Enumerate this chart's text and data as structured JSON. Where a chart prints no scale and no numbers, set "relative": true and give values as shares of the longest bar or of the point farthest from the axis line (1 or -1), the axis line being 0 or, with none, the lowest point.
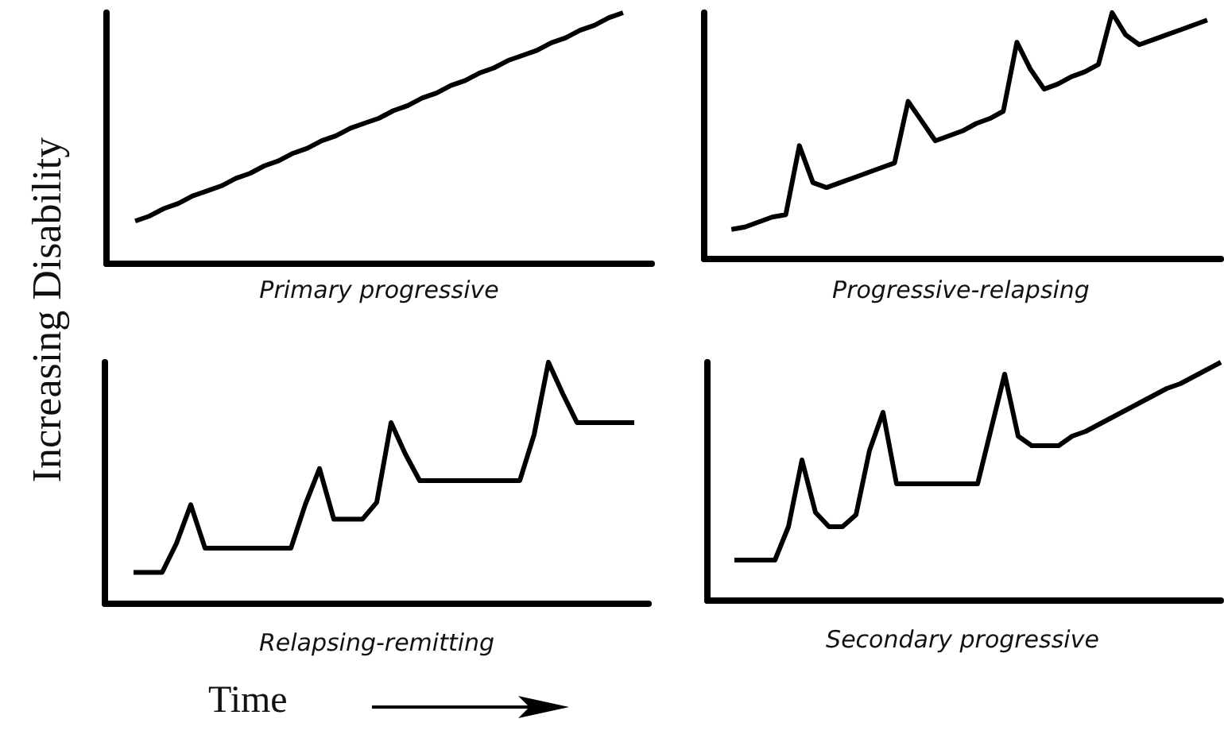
{
  "chart_data": [
    {
      "type": "line",
      "title": "Primary progressive",
      "ylabel": "Increasing Disability",
      "relative": true,
      "tick_labels": false,
      "color": "#000000",
      "categories": [
        null,
        null,
        null,
        null,
        null,
        null,
        null,
        null,
        null,
        null,
        null,
        null,
        null,
        null,
        null,
        null,
        null,
        null,
        null,
        null,
        null,
        null,
        null,
        null,
        null,
        null,
        null,
        null,
        null,
        null,
        null,
        null,
        null,
        null,
        null,
        null,
        null,
        null,
        null
      ],
      "values": [
        null,
        null,
        0.17,
        0.19,
        0.22,
        0.24,
        0.27,
        0.29,
        0.31,
        0.34,
        0.36,
        0.39,
        0.41,
        0.44,
        0.46,
        0.49,
        0.51,
        0.54,
        0.56,
        0.58,
        0.61,
        0.63,
        0.66,
        0.68,
        0.71,
        0.73,
        0.76,
        0.78,
        0.81,
        0.83,
        0.85,
        0.88,
        0.9,
        0.93,
        0.95,
        0.98,
        1,
        null,
        null
      ]
    },
    {
      "type": "line",
      "title": "Progressive-relapsing",
      "relative": true,
      "tick_labels": false,
      "color": "#000000",
      "categories": [
        null,
        null,
        null,
        null,
        null,
        null,
        null,
        null,
        null,
        null,
        null,
        null,
        null,
        null,
        null,
        null,
        null,
        null,
        null,
        null,
        null,
        null,
        null,
        null,
        null,
        null,
        null,
        null,
        null,
        null,
        null,
        null,
        null,
        null,
        null,
        null,
        null,
        null,
        null
      ],
      "values": [
        null,
        null,
        0.12,
        0.13,
        0.15,
        0.17,
        0.18,
        0.46,
        0.31,
        0.29,
        0.31,
        0.33,
        0.35,
        0.37,
        0.39,
        0.64,
        0.56,
        0.48,
        0.5,
        0.52,
        0.55,
        0.57,
        0.6,
        0.88,
        0.77,
        0.69,
        0.71,
        0.74,
        0.76,
        0.79,
        1,
        0.91,
        0.87,
        0.89,
        0.91,
        0.93,
        0.95,
        0.97,
        null
      ]
    },
    {
      "type": "line",
      "title": "Relapsing-remitting",
      "xlabel": "Time",
      "relative": true,
      "tick_labels": false,
      "color": "#000000",
      "categories": [
        null,
        null,
        null,
        null,
        null,
        null,
        null,
        null,
        null,
        null,
        null,
        null,
        null,
        null,
        null,
        null,
        null,
        null,
        null,
        null,
        null,
        null,
        null,
        null,
        null,
        null,
        null,
        null,
        null,
        null,
        null,
        null,
        null,
        null,
        null,
        null,
        null,
        null,
        null
      ],
      "values": [
        null,
        null,
        0.13,
        0.13,
        0.13,
        0.25,
        0.41,
        0.23,
        0.23,
        0.23,
        0.23,
        0.23,
        0.23,
        0.23,
        0.41,
        0.56,
        0.35,
        0.35,
        0.35,
        0.42,
        0.75,
        0.62,
        0.51,
        0.51,
        0.51,
        0.51,
        0.51,
        0.51,
        0.51,
        0.51,
        0.7,
        1,
        0.87,
        0.75,
        0.75,
        0.75,
        0.75,
        0.75,
        null
      ]
    },
    {
      "type": "line",
      "title": "Secondary progressive",
      "relative": true,
      "tick_labels": false,
      "color": "#000000",
      "categories": [
        null,
        null,
        null,
        null,
        null,
        null,
        null,
        null,
        null,
        null,
        null,
        null,
        null,
        null,
        null,
        null,
        null,
        null,
        null,
        null,
        null,
        null,
        null,
        null,
        null,
        null,
        null,
        null,
        null,
        null,
        null,
        null,
        null,
        null,
        null,
        null,
        null,
        null,
        null
      ],
      "values": [
        null,
        null,
        0.17,
        0.17,
        0.17,
        0.17,
        0.31,
        0.59,
        0.37,
        0.31,
        0.31,
        0.36,
        0.63,
        0.79,
        0.49,
        0.49,
        0.49,
        0.49,
        0.49,
        0.49,
        0.49,
        0.72,
        0.95,
        0.69,
        0.65,
        0.65,
        0.65,
        0.69,
        0.71,
        0.74,
        0.77,
        0.8,
        0.83,
        0.86,
        0.89,
        0.91,
        0.94,
        0.97,
        1
      ]
    }
  ]
}
